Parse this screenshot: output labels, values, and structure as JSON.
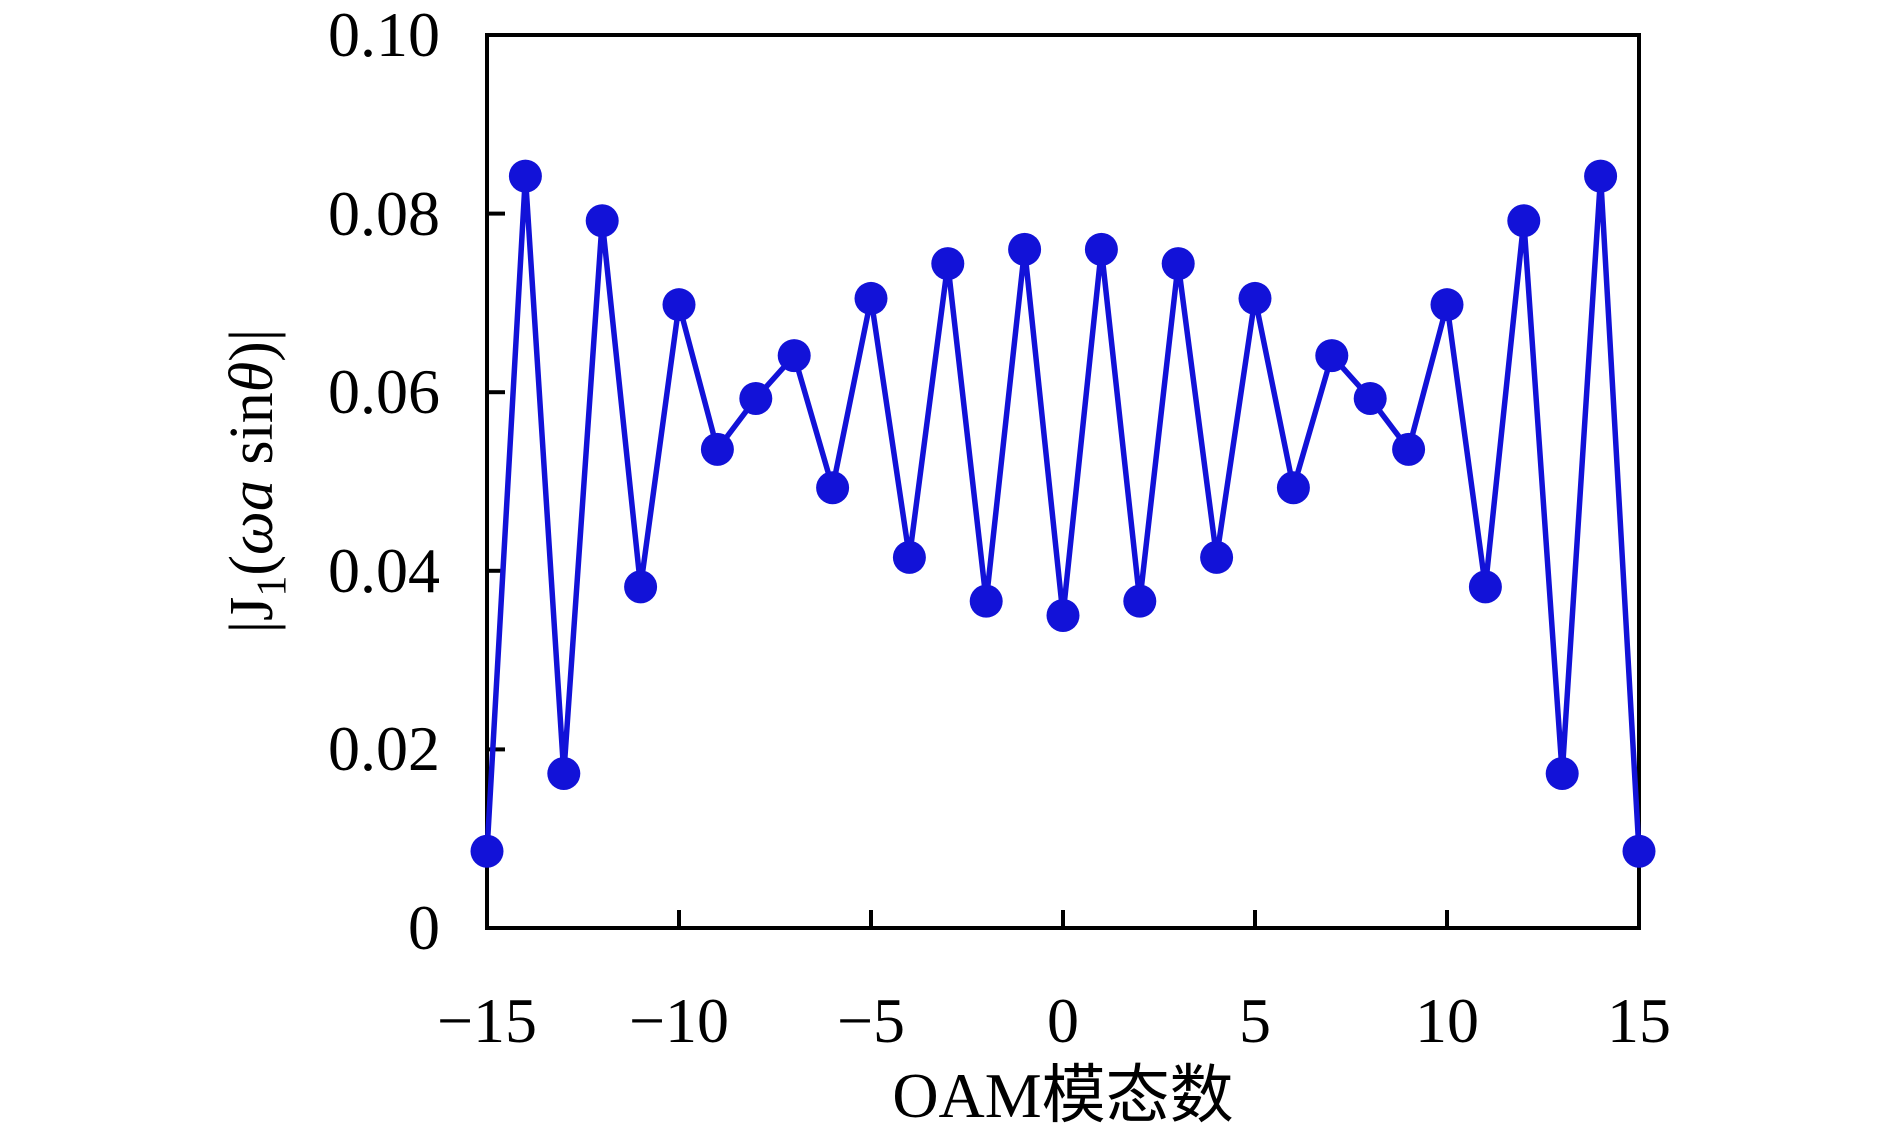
{
  "chart_data": {
    "type": "line",
    "title": "",
    "xlabel": "OAM模态数",
    "ylabel": "|J1(ωa sinθ)|",
    "ylabel_parts": {
      "p1": "|J",
      "sub": "1",
      "p2": "(",
      "it1": "ωa",
      "p3": " sin",
      "it2": "θ",
      "p4": ")|"
    },
    "xlim": [
      -15,
      15
    ],
    "ylim": [
      0,
      0.1
    ],
    "grid": false,
    "legend": null,
    "marker": "circle",
    "line_color": "#1212d8",
    "frame_color": "#000000",
    "x_tick_values": [
      -15,
      -10,
      -5,
      0,
      5,
      10,
      15
    ],
    "x_tick_labels": [
      "−15",
      "−10",
      "−5",
      "0",
      "5",
      "10",
      "15"
    ],
    "y_tick_values": [
      0,
      0.02,
      0.04,
      0.06,
      0.08,
      0.1
    ],
    "y_tick_labels": [
      "0",
      "0.02",
      "0.04",
      "0.06",
      "0.08",
      "0.10"
    ],
    "x": [
      -15,
      -14,
      -13,
      -12,
      -11,
      -10,
      -9,
      -8,
      -7,
      -6,
      -5,
      -4,
      -3,
      -2,
      -1,
      0,
      1,
      2,
      3,
      4,
      5,
      6,
      7,
      8,
      9,
      10,
      11,
      12,
      13,
      14,
      15
    ],
    "values": [
      0.0086,
      0.0842,
      0.0173,
      0.0792,
      0.0382,
      0.0698,
      0.0536,
      0.0593,
      0.0641,
      0.0493,
      0.0705,
      0.0415,
      0.0744,
      0.0366,
      0.076,
      0.035,
      0.076,
      0.0366,
      0.0744,
      0.0415,
      0.0705,
      0.0493,
      0.0641,
      0.0593,
      0.0536,
      0.0698,
      0.0382,
      0.0792,
      0.0173,
      0.0842,
      0.0086
    ]
  }
}
